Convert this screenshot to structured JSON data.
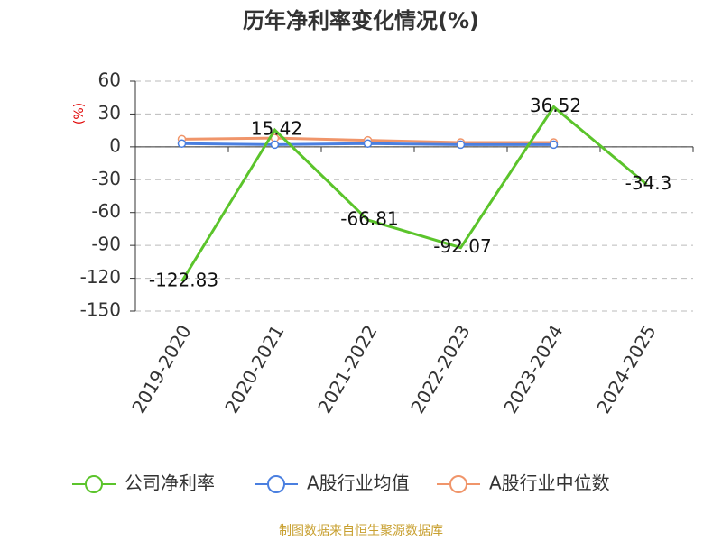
{
  "chart_data": {
    "type": "line",
    "title": "历年净利率变化情况(%)",
    "y_label": "(%)",
    "categories": [
      "2019-2020",
      "2020-2021",
      "2021-2022",
      "2022-2023",
      "2023-2024",
      "2024-2025"
    ],
    "series": [
      {
        "name": "公司净利率",
        "color": "#5bc42b",
        "values": [
          -122.83,
          15.42,
          -66.81,
          -92.07,
          36.52,
          -34.3
        ],
        "show_labels": true
      },
      {
        "name": "A股行业均值",
        "color": "#4a7fe0",
        "values": [
          3,
          2,
          3,
          2,
          2,
          null
        ]
      },
      {
        "name": "A股行业中位数",
        "color": "#f0956a",
        "values": [
          7,
          8,
          6,
          4,
          4,
          null
        ]
      }
    ],
    "ylim": [
      -150,
      60
    ],
    "yticks": [
      60,
      30,
      0,
      -30,
      -60,
      -90,
      -120,
      -150
    ],
    "grid": true,
    "source": "制图数据来自恒生聚源数据库"
  }
}
